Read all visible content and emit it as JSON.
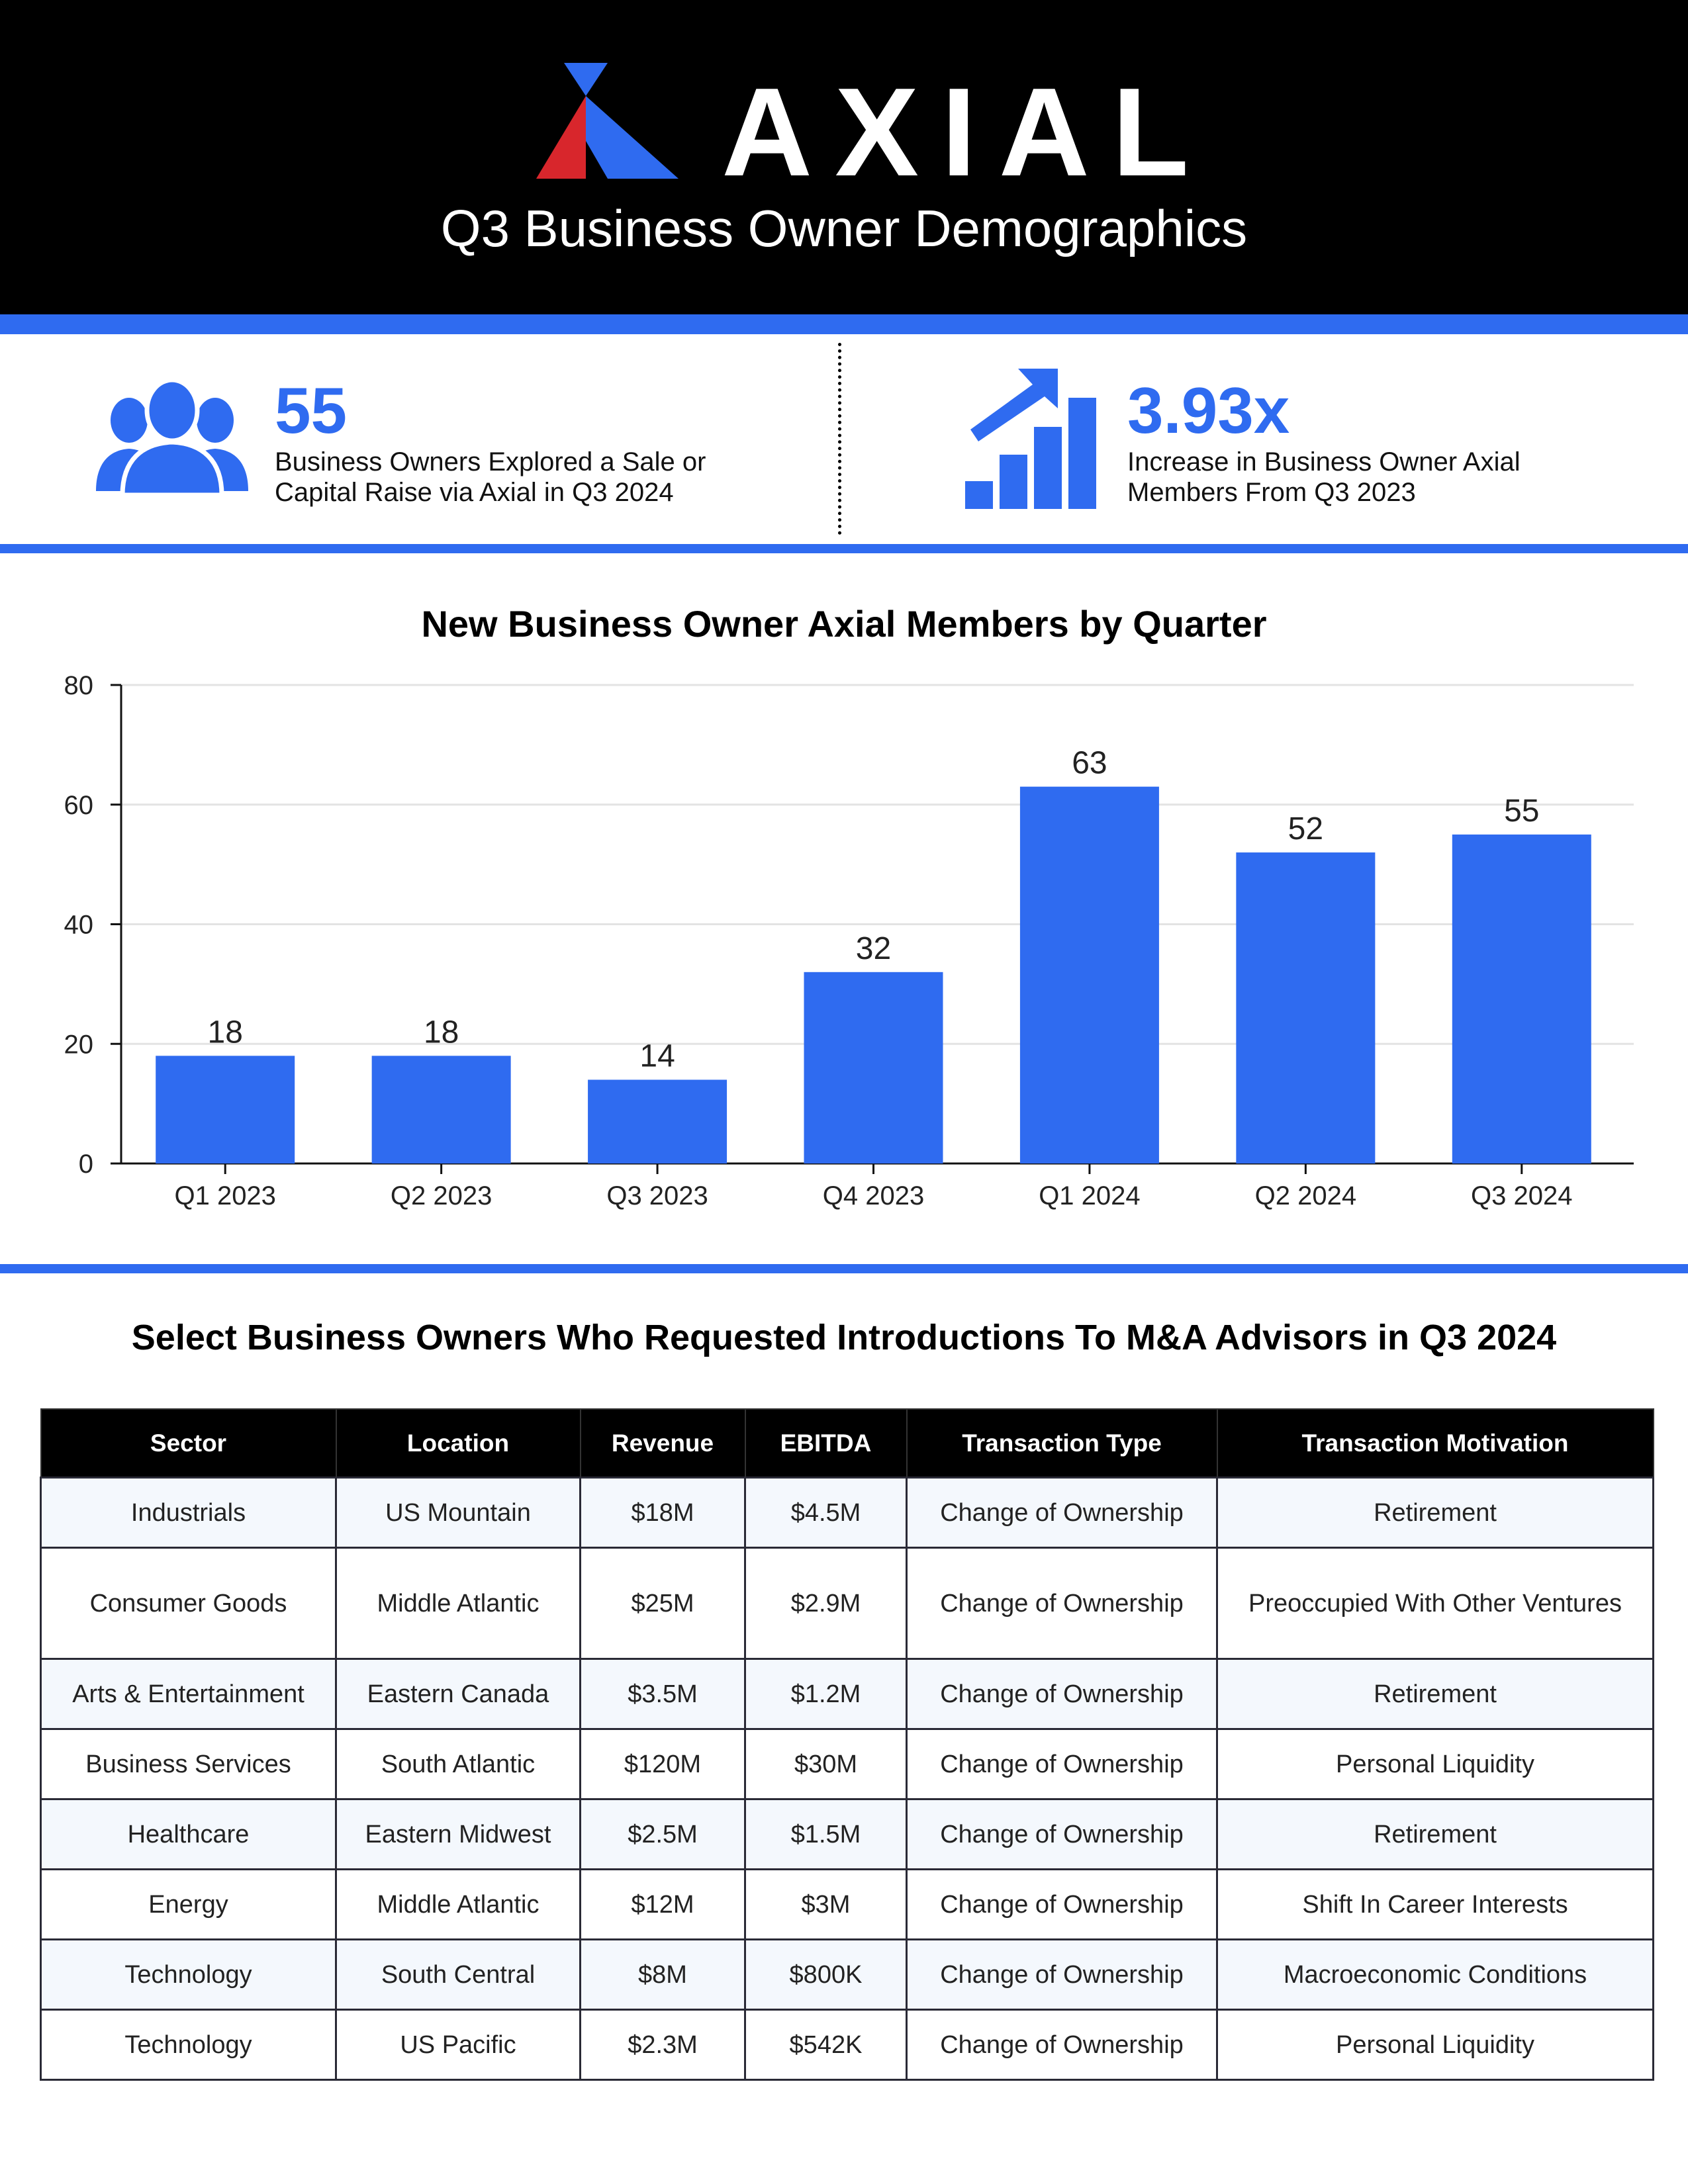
{
  "header": {
    "logo_text": "AXIAL",
    "title": "Q3 Business Owner Demographics",
    "colors": {
      "red": "#d8262c",
      "blue": "#2f6bf0",
      "black": "#000000"
    }
  },
  "stats": [
    {
      "icon": "people-group-icon",
      "value": "55",
      "description": "Business Owners Explored a Sale or Capital Raise via Axial in Q3 2024"
    },
    {
      "icon": "growth-chart-icon",
      "value": "3.93x",
      "description": "Increase in Business Owner Axial Members From Q3 2023"
    }
  ],
  "chart_data": {
    "type": "bar",
    "title": "New Business Owner Axial Members by Quarter",
    "categories": [
      "Q1 2023",
      "Q2 2023",
      "Q3 2023",
      "Q4 2023",
      "Q1 2024",
      "Q2 2024",
      "Q3 2024"
    ],
    "values": [
      18,
      18,
      14,
      32,
      63,
      52,
      55
    ],
    "ylim": [
      0,
      80
    ],
    "yticks": [
      0,
      20,
      40,
      60,
      80
    ],
    "grid": true,
    "bar_color": "#2f6bf0"
  },
  "table": {
    "title": "Select Business Owners Who Requested Introductions To M&A Advisors in Q3 2024",
    "columns": [
      "Sector",
      "Location",
      "Revenue",
      "EBITDA",
      "Transaction Type",
      "Transaction Motivation"
    ],
    "rows": [
      [
        "Industrials",
        "US Mountain",
        "$18M",
        "$4.5M",
        "Change of Ownership",
        "Retirement"
      ],
      [
        "Consumer Goods",
        "Middle Atlantic",
        "$25M",
        "$2.9M",
        "Change of Ownership",
        "Preoccupied With Other Ventures"
      ],
      [
        "Arts & Entertainment",
        "Eastern Canada",
        "$3.5M",
        "$1.2M",
        "Change of Ownership",
        "Retirement"
      ],
      [
        "Business Services",
        "South Atlantic",
        "$120M",
        "$30M",
        "Change of Ownership",
        "Personal Liquidity"
      ],
      [
        "Healthcare",
        "Eastern Midwest",
        "$2.5M",
        "$1.5M",
        "Change of Ownership",
        "Retirement"
      ],
      [
        "Energy",
        "Middle Atlantic",
        "$12M",
        "$3M",
        "Change of Ownership",
        "Shift In Career Interests"
      ],
      [
        "Technology",
        "South Central",
        "$8M",
        "$800K",
        "Change of Ownership",
        "Macroeconomic Conditions"
      ],
      [
        "Technology",
        "US Pacific",
        "$2.3M",
        "$542K",
        "Change of Ownership",
        "Personal Liquidity"
      ]
    ]
  }
}
